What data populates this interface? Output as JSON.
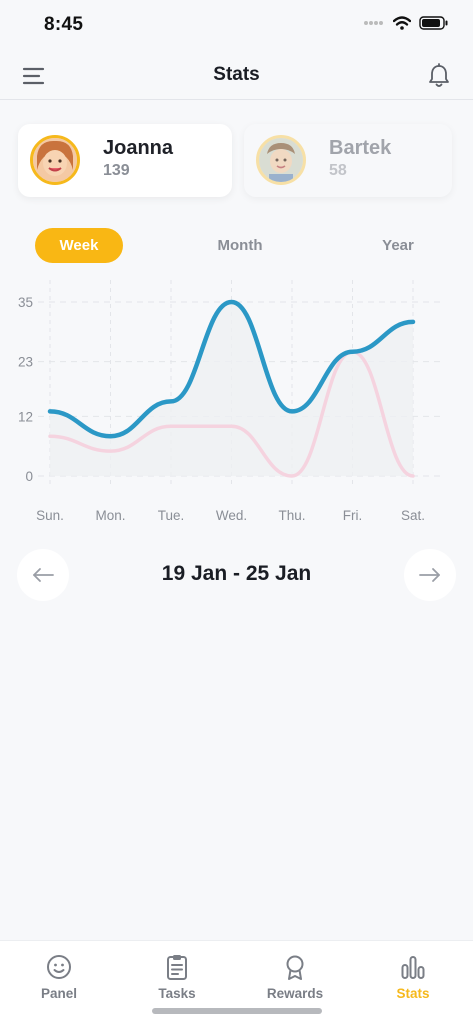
{
  "status_bar": {
    "time": "8:45"
  },
  "header": {
    "title": "Stats"
  },
  "kids": [
    {
      "name": "Joanna",
      "points": "139",
      "selected": true
    },
    {
      "name": "Bartek",
      "points": "58",
      "selected": false
    }
  ],
  "periods": [
    {
      "label": "Week",
      "selected": true
    },
    {
      "label": "Month",
      "selected": false
    },
    {
      "label": "Year",
      "selected": false
    }
  ],
  "chart_data": {
    "type": "line",
    "categories": [
      "Sun.",
      "Mon.",
      "Tue.",
      "Wed.",
      "Thu.",
      "Fri.",
      "Sat."
    ],
    "ytick_labels": [
      "0",
      "12",
      "23",
      "35"
    ],
    "ylim": [
      0,
      35
    ],
    "grid": true,
    "series": [
      {
        "values": [
          13,
          8,
          15,
          35,
          13,
          25,
          31
        ],
        "color": "#2b98c6"
      },
      {
        "values": [
          8,
          5,
          10,
          10,
          0,
          25,
          0
        ],
        "color": "#f5d3df"
      }
    ]
  },
  "date_range": "19 Jan - 25 Jan",
  "tabs": [
    {
      "label": "Panel",
      "icon": "smiley-icon",
      "selected": false
    },
    {
      "label": "Tasks",
      "icon": "clipboard-icon",
      "selected": false
    },
    {
      "label": "Rewards",
      "icon": "medal-icon",
      "selected": false
    },
    {
      "label": "Stats",
      "icon": "bar-chart-icon",
      "selected": true
    }
  ],
  "colors": {
    "accent": "#f9b714",
    "primary_line": "#2b98c6",
    "secondary_line": "#f5d3df"
  }
}
